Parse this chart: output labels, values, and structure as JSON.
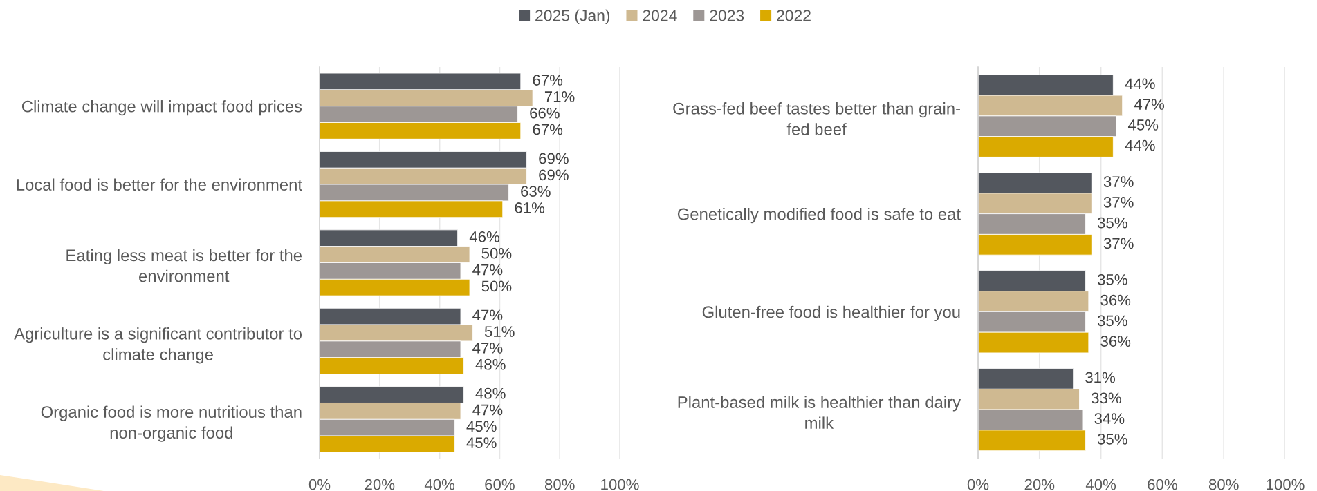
{
  "chart_data": [
    {
      "type": "bar",
      "orientation": "horizontal",
      "legend": "top",
      "grid": "x",
      "xlim": [
        0,
        100
      ],
      "xticks": [
        {
          "value": 0,
          "label": "0%"
        },
        {
          "value": 20,
          "label": "20%"
        },
        {
          "value": 40,
          "label": "40%"
        },
        {
          "value": 60,
          "label": "60%"
        },
        {
          "value": 80,
          "label": "80%"
        },
        {
          "value": 100,
          "label": "100%"
        }
      ],
      "categories": [
        "Climate change will impact food prices",
        "Local food is better for the environment",
        "Eating less meat is better for the\nenvironment",
        "Agriculture is a significant contributor to\nclimate change",
        "Organic food is more nutritious than\nnon-organic food"
      ],
      "series": [
        {
          "name": "2025 (Jan)",
          "color": "#53575e",
          "values": [
            67,
            69,
            46,
            47,
            48
          ],
          "value_labels": [
            "67%",
            "69%",
            "46%",
            "47%",
            "48%"
          ]
        },
        {
          "name": "2024",
          "color": "#cfb991",
          "values": [
            71,
            69,
            50,
            51,
            47
          ],
          "value_labels": [
            "71%",
            "69%",
            "50%",
            "51%",
            "47%"
          ]
        },
        {
          "name": "2023",
          "color": "#9d9795",
          "values": [
            66,
            63,
            47,
            47,
            45
          ],
          "value_labels": [
            "66%",
            "63%",
            "47%",
            "47%",
            "45%"
          ]
        },
        {
          "name": "2022",
          "color": "#daaa00",
          "values": [
            67,
            61,
            50,
            48,
            45
          ],
          "value_labels": [
            "67%",
            "61%",
            "50%",
            "48%",
            "45%"
          ]
        }
      ]
    },
    {
      "type": "bar",
      "orientation": "horizontal",
      "grid": "x",
      "xlim": [
        0,
        100
      ],
      "xticks": [
        {
          "value": 0,
          "label": "0%"
        },
        {
          "value": 20,
          "label": "20%"
        },
        {
          "value": 40,
          "label": "40%"
        },
        {
          "value": 60,
          "label": "60%"
        },
        {
          "value": 80,
          "label": "80%"
        },
        {
          "value": 100,
          "label": "100%"
        }
      ],
      "categories": [
        "Grass-fed beef tastes better than grain-\nfed beef",
        "Genetically modified food is safe to eat",
        "Gluten-free food is healthier for you",
        "Plant-based milk is healthier than dairy\nmilk"
      ],
      "series": [
        {
          "color": "#53575e",
          "values": [
            44,
            37,
            35,
            31
          ],
          "value_labels": [
            "44%",
            "37%",
            "35%",
            "31%"
          ]
        },
        {
          "color": "#cfb991",
          "values": [
            47,
            37,
            36,
            33
          ],
          "value_labels": [
            "47%",
            "37%",
            "36%",
            "33%"
          ]
        },
        {
          "color": "#9d9795",
          "values": [
            45,
            35,
            35,
            34
          ],
          "value_labels": [
            "45%",
            "35%",
            "35%",
            "34%"
          ]
        },
        {
          "color": "#daaa00",
          "values": [
            44,
            37,
            36,
            35
          ],
          "value_labels": [
            "44%",
            "37%",
            "36%",
            "35%"
          ]
        }
      ]
    }
  ]
}
